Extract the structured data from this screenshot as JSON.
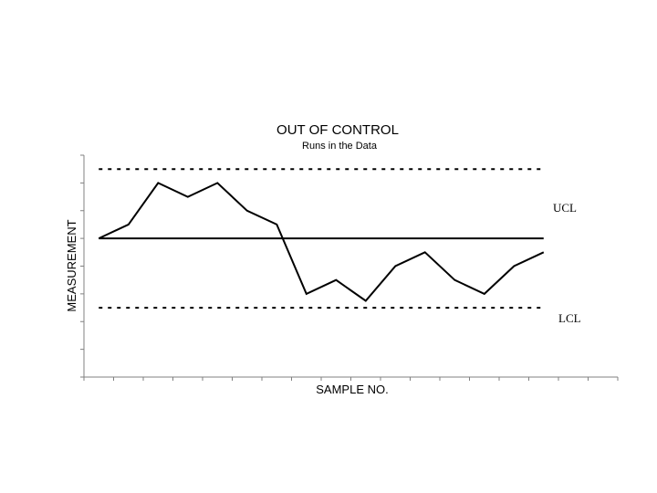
{
  "chart_data": {
    "type": "line",
    "title": "OUT OF CONTROL",
    "subtitle": "Runs in the Data",
    "xlabel": "SAMPLE NO.",
    "ylabel": "MEASUREMENT",
    "x": [
      1,
      2,
      3,
      4,
      5,
      6,
      7,
      8,
      9,
      10,
      11,
      12,
      13,
      14,
      15,
      16
    ],
    "series": [
      {
        "values": [
          5.0,
          5.5,
          7.0,
          6.5,
          7.0,
          6.0,
          5.5,
          3.0,
          3.5,
          2.75,
          4.0,
          4.5,
          3.5,
          3.0,
          4.0,
          4.5
        ]
      }
    ],
    "center_line": 5.0,
    "ucl": {
      "label": "UCL",
      "value": 7.5
    },
    "lcl": {
      "label": "LCL",
      "value": 2.5
    },
    "ylim": [
      0,
      8
    ],
    "xlim": [
      0.5,
      18.5
    ],
    "y_ticks": 8,
    "x_ticks": 18,
    "grid": false,
    "line_color": "#000000"
  }
}
